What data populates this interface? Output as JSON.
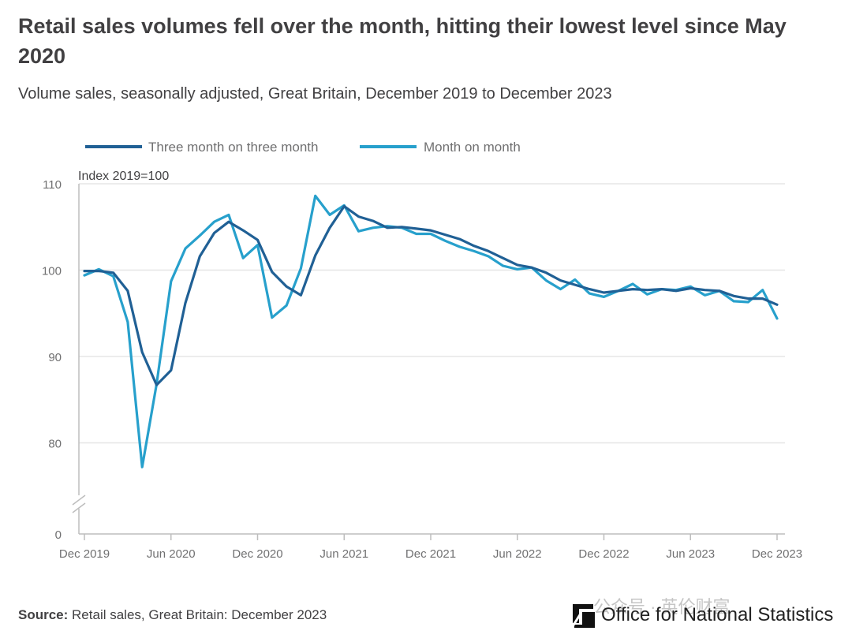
{
  "header": {
    "title": "Retail sales volumes fell over the month, hitting their lowest level since May 2020",
    "subtitle": "Volume sales, seasonally adjusted, Great Britain, December 2019 to December 2023"
  },
  "footer": {
    "source_label": "Source:",
    "source_text": "Retail sales, Great Britain: December 2023",
    "logo_text": "Office for National Statistics",
    "watermark_text": "公众号 · 英伦财富"
  },
  "colors": {
    "three_month": "#206095",
    "month_on_month": "#27A0CC",
    "grid": "#e6e6e6",
    "axis": "#bdbdbd"
  },
  "chart_data": {
    "type": "line",
    "title": "Retail sales volumes fell over the month, hitting their lowest level since May 2020",
    "ylabel": "Index 2019=100",
    "xlabel": "",
    "ylim": [
      0,
      110
    ],
    "axis_break": true,
    "y_ticks": [
      0,
      80,
      90,
      100,
      110
    ],
    "x_tick_labels": [
      "Dec 2019",
      "Jun 2020",
      "Dec 2020",
      "Jun 2021",
      "Dec 2021",
      "Jun 2022",
      "Dec 2022",
      "Jun 2023",
      "Dec 2023"
    ],
    "legend_position": "top-left",
    "x": [
      "Dec 2019",
      "Jan 2020",
      "Feb 2020",
      "Mar 2020",
      "Apr 2020",
      "May 2020",
      "Jun 2020",
      "Jul 2020",
      "Aug 2020",
      "Sep 2020",
      "Oct 2020",
      "Nov 2020",
      "Dec 2020",
      "Jan 2021",
      "Feb 2021",
      "Mar 2021",
      "Apr 2021",
      "May 2021",
      "Jun 2021",
      "Jul 2021",
      "Aug 2021",
      "Sep 2021",
      "Oct 2021",
      "Nov 2021",
      "Dec 2021",
      "Jan 2022",
      "Feb 2022",
      "Mar 2022",
      "Apr 2022",
      "May 2022",
      "Jun 2022",
      "Jul 2022",
      "Aug 2022",
      "Sep 2022",
      "Oct 2022",
      "Nov 2022",
      "Dec 2022",
      "Jan 2023",
      "Feb 2023",
      "Mar 2023",
      "Apr 2023",
      "May 2023",
      "Jun 2023",
      "Jul 2023",
      "Aug 2023",
      "Sep 2023",
      "Oct 2023",
      "Nov 2023",
      "Dec 2023"
    ],
    "series": [
      {
        "name": "Three month on three month",
        "values": [
          99.9,
          99.9,
          99.7,
          97.6,
          90.5,
          86.7,
          88.4,
          96.2,
          101.6,
          104.3,
          105.6,
          104.6,
          103.5,
          99.8,
          98.1,
          97.1,
          101.7,
          104.9,
          107.4,
          106.2,
          105.7,
          104.9,
          105.0,
          104.8,
          104.6,
          104.1,
          103.6,
          102.8,
          102.2,
          101.4,
          100.6,
          100.3,
          99.7,
          98.8,
          98.3,
          97.8,
          97.4,
          97.6,
          97.8,
          97.7,
          97.8,
          97.6,
          97.9,
          97.7,
          97.6,
          97.0,
          96.7,
          96.7,
          96.0
        ]
      },
      {
        "name": "Month on month",
        "values": [
          99.4,
          100.1,
          99.3,
          94.0,
          77.2,
          86.8,
          98.7,
          102.5,
          104.0,
          105.6,
          106.4,
          101.4,
          102.9,
          94.5,
          95.9,
          100.2,
          108.6,
          106.4,
          107.5,
          104.5,
          104.9,
          105.1,
          104.9,
          104.2,
          104.2,
          103.4,
          102.7,
          102.2,
          101.6,
          100.5,
          100.1,
          100.3,
          98.8,
          97.8,
          98.9,
          97.3,
          96.9,
          97.6,
          98.4,
          97.2,
          97.8,
          97.7,
          98.1,
          97.1,
          97.6,
          96.4,
          96.3,
          97.7,
          94.4
        ]
      }
    ]
  }
}
